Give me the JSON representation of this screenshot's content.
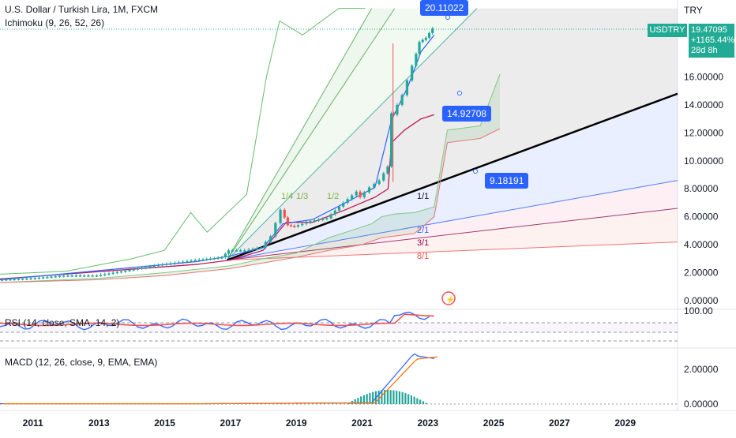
{
  "header": {
    "title": "U.S. Dollar / Turkish Lira, 1M, FXCM",
    "indicator": "Ichimoku (9, 26, 52, 26)"
  },
  "currency_label": "TRY",
  "price_tag": {
    "symbol": "USDTRY",
    "price": "19.47095",
    "change": "+1165.44%",
    "countdown": "28d 8h"
  },
  "callouts": [
    "20.11022",
    "14.92708",
    "9.18191"
  ],
  "gann_labels": [
    "1/4",
    "1/3",
    "1/2",
    "1/1",
    "2/1",
    "3/1",
    "8/1"
  ],
  "rsi_label": "RSI (14, close, SMA, 14, 2)",
  "macd_label": "MACD (12, 26, close, 9, EMA, EMA)",
  "colors": {
    "candle_up": "#26a69a",
    "candle_down": "#ef5350",
    "tenkan": "#2962ff",
    "kijun": "#c2185b",
    "span_a": "#43a047",
    "span_b": "#ef5350",
    "fan_line": "#000000",
    "accent": "#22ab94"
  },
  "chart_data": [
    {
      "type": "line",
      "title": "U.S. Dollar / Turkish Lira, 1M, FXCM",
      "series": [
        {
          "name": "USDTRY",
          "x": [
            2010,
            2011,
            2012,
            2013,
            2014,
            2015,
            2016,
            2016.8,
            2017,
            2017.5,
            2018,
            2018.3,
            2018.6,
            2018.8,
            2019,
            2019.5,
            2020,
            2020.5,
            2020.9,
            2021,
            2021.3,
            2021.6,
            2021.85,
            2021.95,
            2022,
            2022.3,
            2022.6,
            2022.8,
            2023,
            2023.2
          ],
          "values": [
            1.5,
            1.6,
            1.8,
            1.8,
            2.2,
            2.6,
            2.9,
            3.1,
            3.6,
            3.6,
            3.8,
            4.6,
            6.5,
            5.4,
            5.3,
            5.7,
            5.9,
            7.0,
            7.8,
            7.4,
            8.1,
            8.6,
            9.6,
            13.4,
            13.3,
            14.7,
            16.8,
            18.5,
            18.8,
            19.47
          ]
        }
      ],
      "callouts": [
        20.11022,
        14.92708,
        9.18191
      ],
      "gann_fan": [
        "1/4",
        "1/3",
        "1/2",
        "1/1",
        "2/1",
        "3/1",
        "8/1"
      ],
      "yticks": [
        0,
        2,
        4,
        6,
        8,
        10,
        12,
        14,
        16
      ],
      "ytick_labels": [
        "0.00000",
        "2.00000",
        "4.00000",
        "6.00000",
        "8.00000",
        "10.00000",
        "12.00000",
        "14.00000",
        "16.00000"
      ],
      "xticks": [
        "2011",
        "2013",
        "2015",
        "2017",
        "2019",
        "2021",
        "2023",
        "2025",
        "2027",
        "2029"
      ],
      "ylabel": "TRY",
      "grid": false
    },
    {
      "type": "line",
      "title": "RSI (14, close, SMA, 14, 2)",
      "yticks": [
        "100.00"
      ],
      "grid": false
    },
    {
      "type": "line",
      "title": "MACD (12, 26, close, 9, EMA, EMA)",
      "yticks": [
        0,
        2
      ],
      "ytick_labels": [
        "0.00000",
        "2.00000"
      ],
      "grid": false
    }
  ]
}
